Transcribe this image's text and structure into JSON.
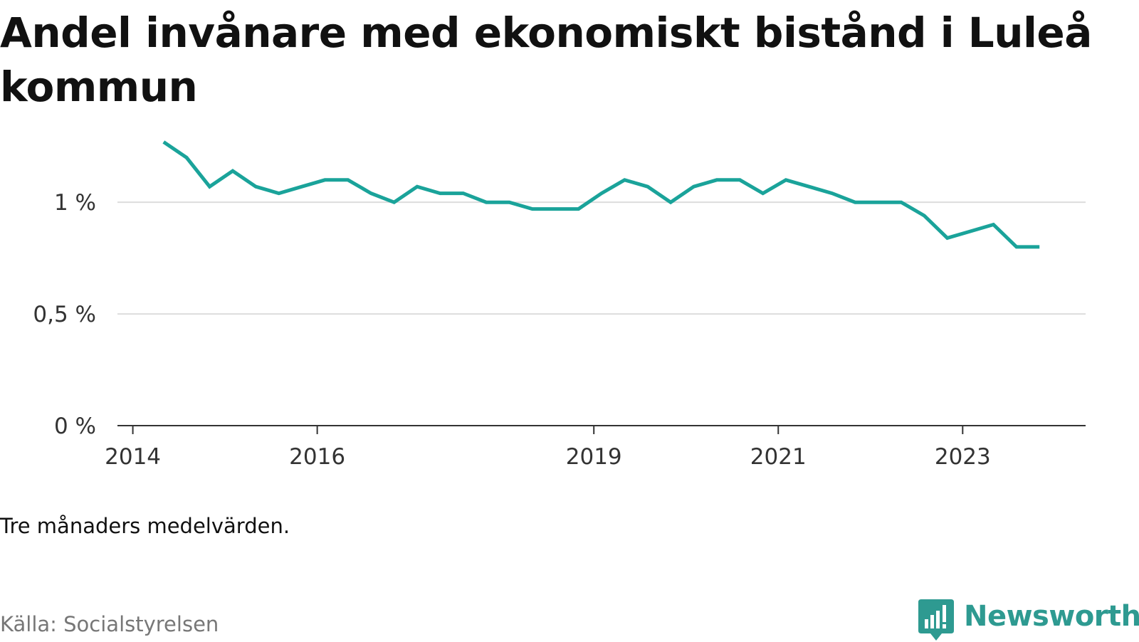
{
  "title": "Andel invånare med ekonomiskt bistånd i Luleå kommun",
  "note": "Tre månaders medelvärden.",
  "source": "Källa: Socialstyrelsen",
  "brand": {
    "name": "Newsworthy",
    "icon": "newsworthy-logo-icon",
    "color": "#2e9a91"
  },
  "chart_data": {
    "type": "line",
    "title": "Andel invånare med ekonomiskt bistånd i Luleå kommun",
    "xlabel": "",
    "ylabel": "",
    "x": [
      "2014-05",
      "2014-08",
      "2014-11",
      "2015-02",
      "2015-05",
      "2015-08",
      "2015-11",
      "2016-02",
      "2016-05",
      "2016-08",
      "2016-11",
      "2017-02",
      "2017-05",
      "2017-08",
      "2017-11",
      "2018-02",
      "2018-05",
      "2018-08",
      "2018-11",
      "2019-02",
      "2019-05",
      "2019-08",
      "2019-11",
      "2020-02",
      "2020-05",
      "2020-08",
      "2020-11",
      "2021-02",
      "2021-05",
      "2021-08",
      "2021-11",
      "2022-02",
      "2022-05",
      "2022-08",
      "2022-11",
      "2023-02",
      "2023-05",
      "2023-08",
      "2023-11"
    ],
    "series": [
      {
        "name": "",
        "color": "#1aa39a",
        "values": [
          1.27,
          1.2,
          1.07,
          1.14,
          1.07,
          1.04,
          1.07,
          1.1,
          1.1,
          1.04,
          1.0,
          1.07,
          1.04,
          1.04,
          1.0,
          1.0,
          0.97,
          0.97,
          0.97,
          1.04,
          1.1,
          1.07,
          1.0,
          1.07,
          1.1,
          1.1,
          1.04,
          1.1,
          1.07,
          1.04,
          1.0,
          1.0,
          1.0,
          0.94,
          0.84,
          0.87,
          0.9,
          0.8,
          0.8
        ]
      }
    ],
    "yticks": [
      {
        "value": 0,
        "label": "0 %"
      },
      {
        "value": 0.5,
        "label": "0,5 %"
      },
      {
        "value": 1,
        "label": "1 %"
      }
    ],
    "xticks": [
      {
        "date": "2014-01",
        "label": "2014"
      },
      {
        "date": "2016-01",
        "label": "2016"
      },
      {
        "date": "2019-01",
        "label": "2019"
      },
      {
        "date": "2021-01",
        "label": "2021"
      },
      {
        "date": "2023-01",
        "label": "2023"
      }
    ],
    "xlim": [
      "2013-11",
      "2024-05"
    ],
    "ylim": [
      0,
      1.3
    ],
    "grid": true,
    "legend": "none"
  }
}
